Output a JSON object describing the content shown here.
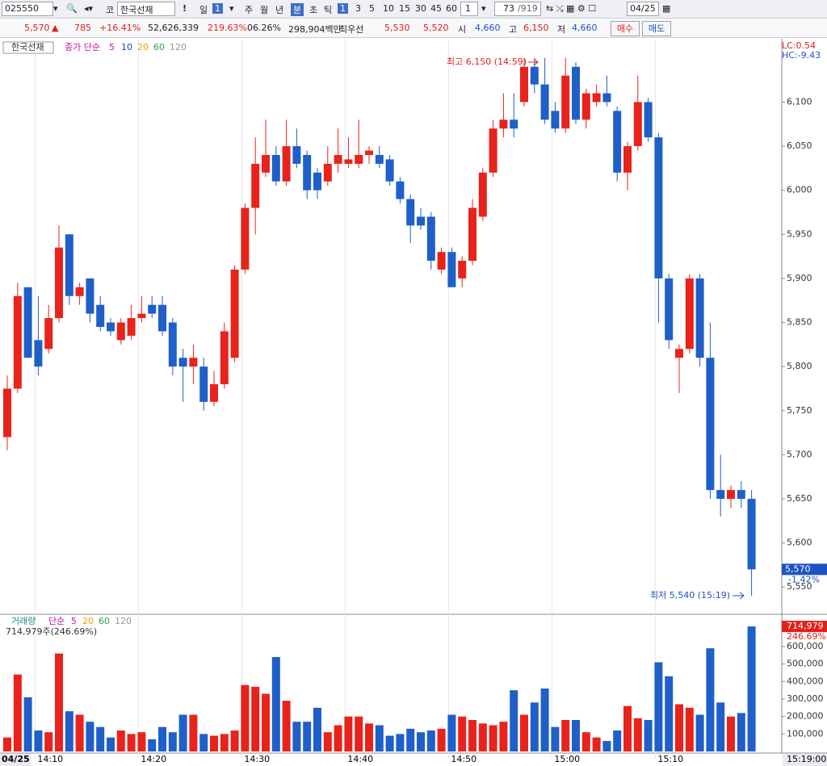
{
  "toolbar": {
    "code": "025550",
    "market": "코",
    "name": "한국선재",
    "alert": "!",
    "period": "일",
    "period_count": "1",
    "periods": [
      "주",
      "월",
      "년",
      "분",
      "초",
      "틱"
    ],
    "intervals": [
      "1",
      "3",
      "5",
      "10",
      "15",
      "30",
      "45",
      "60"
    ],
    "interval_box": "1",
    "count": "73",
    "total": "/919",
    "date": "04/25"
  },
  "info": {
    "price": "5,570",
    "arrow": "▲",
    "change": "785",
    "change_pct": "+16.41%",
    "volume": "52,626,339",
    "volume_ratio": "219.63%",
    "turnover": "06.26%",
    "amount": "298,904백만",
    "best_label": "최우선",
    "ask": "5,530",
    "bid": "5,520",
    "open_label": "시",
    "open": "4,660",
    "high_label": "고",
    "high": "6,150",
    "low_label": "저",
    "low": "4,660",
    "buy": "매수",
    "sell": "매도"
  },
  "chart_data": {
    "type": "candlestick",
    "name": "한국선재",
    "ma_label": "종가 단순",
    "ma_periods": [
      "5",
      "10",
      "20",
      "60",
      "120"
    ],
    "categories": [
      null,
      null,
      null,
      "14:10",
      null,
      null,
      null,
      null,
      null,
      null,
      null,
      null,
      null,
      "14:20",
      null,
      null,
      null,
      null,
      null,
      null,
      null,
      null,
      null,
      "14:30",
      null,
      null,
      null,
      null,
      null,
      null,
      null,
      null,
      null,
      "14:40",
      null,
      null,
      null,
      null,
      null,
      null,
      null,
      null,
      null,
      "14:50",
      null,
      null,
      null,
      null,
      null,
      null,
      null,
      null,
      null,
      "15:00",
      null,
      null,
      null,
      null,
      null,
      null,
      null,
      null,
      null,
      "15:10",
      null,
      null,
      null,
      null,
      null,
      null,
      null,
      null,
      null
    ],
    "date_label": "04/25",
    "cursor_time": "15:19:00",
    "open": [
      5720,
      5775,
      5890,
      5830,
      5820,
      5855,
      5950,
      5880,
      5900,
      5870,
      5850,
      5830,
      5835,
      5855,
      5870,
      5870,
      5850,
      5810,
      5800,
      5800,
      5760,
      5780,
      5810,
      5910,
      5980,
      6020,
      6040,
      6010,
      6050,
      6040,
      6020,
      6010,
      6030,
      6030,
      6030,
      6040,
      6040,
      6035,
      6010,
      5990,
      5970,
      5970,
      5910,
      5930,
      5900,
      5920,
      5970,
      6020,
      6070,
      6080,
      6100,
      6140,
      6120,
      6090,
      6070,
      6140,
      6080,
      6100,
      6110,
      6090,
      6020,
      6050,
      6100,
      6060,
      5900,
      5810,
      5820,
      5900,
      5810,
      5660,
      5650,
      5660,
      5650
    ],
    "high": [
      5790,
      5895,
      5890,
      5880,
      5870,
      5960,
      5950,
      5895,
      5900,
      5880,
      5855,
      5855,
      5870,
      5880,
      5880,
      5880,
      5855,
      5820,
      5825,
      5810,
      5795,
      5850,
      5915,
      5985,
      6060,
      6080,
      6050,
      6080,
      6070,
      6045,
      6025,
      6050,
      6070,
      6060,
      6080,
      6050,
      6050,
      6040,
      6015,
      5995,
      5980,
      5975,
      5935,
      5935,
      5925,
      5990,
      6025,
      6080,
      6110,
      6110,
      6150,
      6150,
      6150,
      6100,
      6150,
      6145,
      6115,
      6120,
      6130,
      6095,
      6055,
      6130,
      6105,
      6065,
      5905,
      5825,
      5905,
      5905,
      5850,
      5700,
      5665,
      5670,
      5660
    ],
    "low": [
      5705,
      5770,
      5810,
      5790,
      5815,
      5850,
      5870,
      5870,
      5850,
      5840,
      5835,
      5825,
      5830,
      5850,
      5855,
      5835,
      5790,
      5760,
      5780,
      5750,
      5755,
      5775,
      5805,
      5905,
      5950,
      6015,
      6005,
      6005,
      6025,
      5990,
      5990,
      6005,
      6020,
      6025,
      6025,
      6030,
      6025,
      6005,
      5985,
      5940,
      5955,
      5910,
      5905,
      5890,
      5890,
      5915,
      5965,
      6015,
      6060,
      6060,
      6095,
      6110,
      6075,
      6065,
      6065,
      6075,
      6070,
      6095,
      6095,
      6010,
      6000,
      6045,
      6055,
      5850,
      5820,
      5770,
      5815,
      5800,
      5650,
      5630,
      5640,
      5640,
      5540
    ],
    "close": [
      5775,
      5880,
      5810,
      5800,
      5855,
      5935,
      5880,
      5890,
      5860,
      5845,
      5840,
      5850,
      5855,
      5860,
      5860,
      5840,
      5800,
      5800,
      5810,
      5760,
      5780,
      5840,
      5910,
      5980,
      6030,
      6040,
      6010,
      6050,
      6030,
      6000,
      6000,
      6030,
      6040,
      6035,
      6040,
      6045,
      6030,
      6010,
      5990,
      5960,
      5960,
      5920,
      5930,
      5890,
      5920,
      5980,
      6020,
      6070,
      6080,
      6070,
      6140,
      6120,
      6080,
      6070,
      6130,
      6080,
      6110,
      6110,
      6100,
      6020,
      6050,
      6100,
      6060,
      5900,
      5830,
      5820,
      5900,
      5810,
      5660,
      5650,
      5660,
      5650,
      5570
    ],
    "up_color": "#e8231b",
    "down_color": "#1f5fc8",
    "ylim": [
      5520,
      6170
    ],
    "yticks": [
      {
        "value": 5550,
        "label": "5,550"
      },
      {
        "value": 5600,
        "label": "5,600"
      },
      {
        "value": 5650,
        "label": "5,650"
      },
      {
        "value": 5700,
        "label": "5,700"
      },
      {
        "value": 5750,
        "label": "5,750"
      },
      {
        "value": 5800,
        "label": "5,800"
      },
      {
        "value": 5850,
        "label": "5,850"
      },
      {
        "value": 5900,
        "label": "5,900"
      },
      {
        "value": 5950,
        "label": "5,950"
      },
      {
        "value": 6000,
        "label": "6,000"
      },
      {
        "value": 6050,
        "label": "6,050"
      },
      {
        "value": 6100,
        "label": "6,100"
      }
    ],
    "lc": "LC:0.54",
    "hc": "HC:-9.43",
    "last_price": {
      "value": 5570,
      "label": "5,570"
    },
    "last_change": "-1.42%",
    "annotations": [
      "최고 6,150 (14:59)",
      "최저 5,540 (15:19)"
    ],
    "volume": {
      "label": "거래량",
      "ma_label": "단순",
      "ma_periods": [
        "5",
        "20",
        "60",
        "120"
      ],
      "summary": "714,979주(246.69%)",
      "values": [
        80000,
        440000,
        310000,
        120000,
        110000,
        560000,
        230000,
        210000,
        170000,
        140000,
        80000,
        120000,
        100000,
        110000,
        70000,
        140000,
        110000,
        210000,
        210000,
        100000,
        90000,
        100000,
        120000,
        380000,
        370000,
        330000,
        540000,
        290000,
        170000,
        170000,
        250000,
        110000,
        150000,
        200000,
        200000,
        160000,
        150000,
        90000,
        100000,
        130000,
        110000,
        120000,
        130000,
        210000,
        200000,
        180000,
        160000,
        150000,
        170000,
        350000,
        210000,
        280000,
        360000,
        140000,
        180000,
        180000,
        110000,
        80000,
        60000,
        120000,
        260000,
        190000,
        180000,
        510000,
        430000,
        270000,
        250000,
        210000,
        590000,
        280000,
        200000,
        220000,
        714979
      ],
      "ylim": [
        0,
        780000
      ],
      "yticks": [
        {
          "value": 100000,
          "label": "100,000"
        },
        {
          "value": 200000,
          "label": "200,000"
        },
        {
          "value": 300000,
          "label": "300,000"
        },
        {
          "value": 400000,
          "label": "400,000"
        },
        {
          "value": 500000,
          "label": "500,000"
        },
        {
          "value": 600000,
          "label": "600,000"
        }
      ],
      "last": {
        "value": 714979,
        "label": "714,979"
      },
      "last_ratio": "246.69%"
    }
  }
}
